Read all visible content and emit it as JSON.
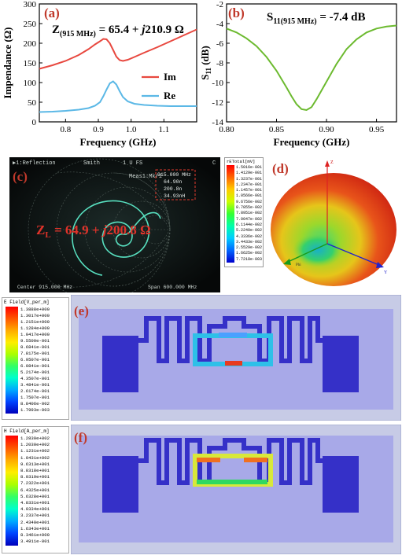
{
  "panels": {
    "a": {
      "label": "(a)",
      "annotation_prefix": "Z",
      "annotation_sub": "(915 MHz)",
      "annotation_rest": " = 65.4 + ",
      "annotation_j": "j",
      "annotation_end": "210.9 Ω"
    },
    "b": {
      "label": "(b)",
      "annotation_prefix": "S",
      "annotation_sub": "11(915 MHz)",
      "annotation_rest": " = -7.4 dB"
    },
    "c": {
      "label": "(c)",
      "top_left": "▶1:Reflection",
      "top_mid": "Smith",
      "top_mid2": "1 U FS",
      "top_right": "C",
      "marker_title": "Meas1:Mkr1",
      "marker_lines": [
        "915.000 MHz",
        "64.90n",
        "200.8n",
        "34.93nH"
      ],
      "annotation_prefix": "Z",
      "annotation_sub": "L",
      "annotation_rest": " = 64.9 + ",
      "annotation_j": "j",
      "annotation_end": "200.8 Ω",
      "bottom_left": "Center 915.000 MHz",
      "bottom_right": "Span 600.000 MHz",
      "colorbar_title": "rETotal[mV]",
      "colorbar_ticks": [
        "1.5016e-001",
        "1.4129e-001",
        "1.3237e-001",
        "1.2347e-001",
        "1.1457e-001",
        "1.0566e-001",
        "9.6756e-002",
        "8.7855e-002",
        "7.8951e-002",
        "7.0047e-002",
        "6.1144e-002",
        "5.2240e-002",
        "4.3336e-002",
        "3.4433e-002",
        "2.5529e-002",
        "1.6625e-002",
        "7.7218e-003"
      ]
    },
    "d": {
      "label": "(d)",
      "axis_z": "Z",
      "axis_y": "Y",
      "axis_x": "Phi"
    },
    "e": {
      "label": "(e)",
      "legend_title": "E Field[V_per_m]",
      "legend_ticks": [
        "1.3888e+000",
        "1.3017e+000",
        "1.2151e+000",
        "1.1284e+000",
        "1.0417e+000",
        "9.5500e-001",
        "8.6841e-001",
        "7.8175e-001",
        "6.9507e-001",
        "6.0841e-001",
        "5.2174e-001",
        "4.3507e-001",
        "3.4841e-001",
        "2.6174e-001",
        "1.7507e-001",
        "8.8406e-002",
        "1.7993e-003"
      ]
    },
    "f": {
      "label": "(f)",
      "legend_title": "H Field[A_per_m]",
      "legend_ticks": [
        "1.2830e+002",
        "1.2030e+002",
        "1.1231e+002",
        "1.0431e+002",
        "9.6313e+001",
        "8.8318e+001",
        "8.0319e+001",
        "7.2322e+001",
        "6.4325e+001",
        "5.6328e+001",
        "4.8331e+001",
        "4.0334e+001",
        "3.2337e+001",
        "2.4340e+001",
        "1.6343e+001",
        "8.3461e+000",
        "3.4911e-001"
      ]
    }
  },
  "chart_data": [
    {
      "type": "line",
      "panel": "a",
      "xlabel": "Frequency (GHz)",
      "ylabel": "Impendance (Ω)",
      "xlim": [
        0.72,
        1.2
      ],
      "ylim": [
        0,
        300
      ],
      "xticks": [
        0.8,
        0.9,
        1.0,
        1.1
      ],
      "yticks": [
        0,
        50,
        100,
        150,
        200,
        250,
        300
      ],
      "legend_position": "right",
      "series": [
        {
          "name": "Im",
          "color": "#e8483f",
          "x": [
            0.72,
            0.76,
            0.8,
            0.84,
            0.87,
            0.89,
            0.905,
            0.915,
            0.925,
            0.935,
            0.945,
            0.955,
            0.965,
            0.975,
            0.99,
            1.01,
            1.04,
            1.08,
            1.12,
            1.16,
            1.2
          ],
          "y": [
            135,
            144,
            155,
            170,
            185,
            197,
            205,
            211,
            210,
            200,
            183,
            166,
            157,
            155,
            158,
            165,
            176,
            190,
            205,
            220,
            235
          ]
        },
        {
          "name": "Re",
          "color": "#5bb8e6",
          "x": [
            0.72,
            0.76,
            0.8,
            0.84,
            0.87,
            0.89,
            0.905,
            0.915,
            0.925,
            0.935,
            0.945,
            0.955,
            0.965,
            0.975,
            0.99,
            1.01,
            1.04,
            1.08,
            1.12,
            1.16,
            1.2
          ],
          "y": [
            25,
            26,
            28,
            31,
            35,
            41,
            50,
            65,
            82,
            98,
            103,
            95,
            78,
            63,
            52,
            46,
            43,
            41,
            40,
            40,
            40
          ]
        }
      ]
    },
    {
      "type": "line",
      "panel": "b",
      "xlabel": "Frequency (GHz)",
      "ylabel": "S11 (dB)",
      "xlim": [
        0.8,
        0.97
      ],
      "ylim": [
        -14,
        -2
      ],
      "xticks": [
        0.8,
        0.85,
        0.9,
        0.95
      ],
      "yticks": [
        -14,
        -12,
        -10,
        -8,
        -6,
        -4,
        -2
      ],
      "series": [
        {
          "name": "",
          "color": "#6cba2f",
          "x": [
            0.8,
            0.81,
            0.82,
            0.83,
            0.84,
            0.85,
            0.86,
            0.865,
            0.87,
            0.875,
            0.88,
            0.885,
            0.89,
            0.9,
            0.91,
            0.92,
            0.93,
            0.94,
            0.95,
            0.96,
            0.97
          ],
          "y": [
            -4.5,
            -4.9,
            -5.5,
            -6.3,
            -7.4,
            -8.8,
            -10.5,
            -11.4,
            -12.2,
            -12.7,
            -12.8,
            -12.5,
            -11.7,
            -9.9,
            -8.1,
            -6.6,
            -5.6,
            -4.9,
            -4.5,
            -4.3,
            -4.2
          ]
        }
      ]
    }
  ]
}
